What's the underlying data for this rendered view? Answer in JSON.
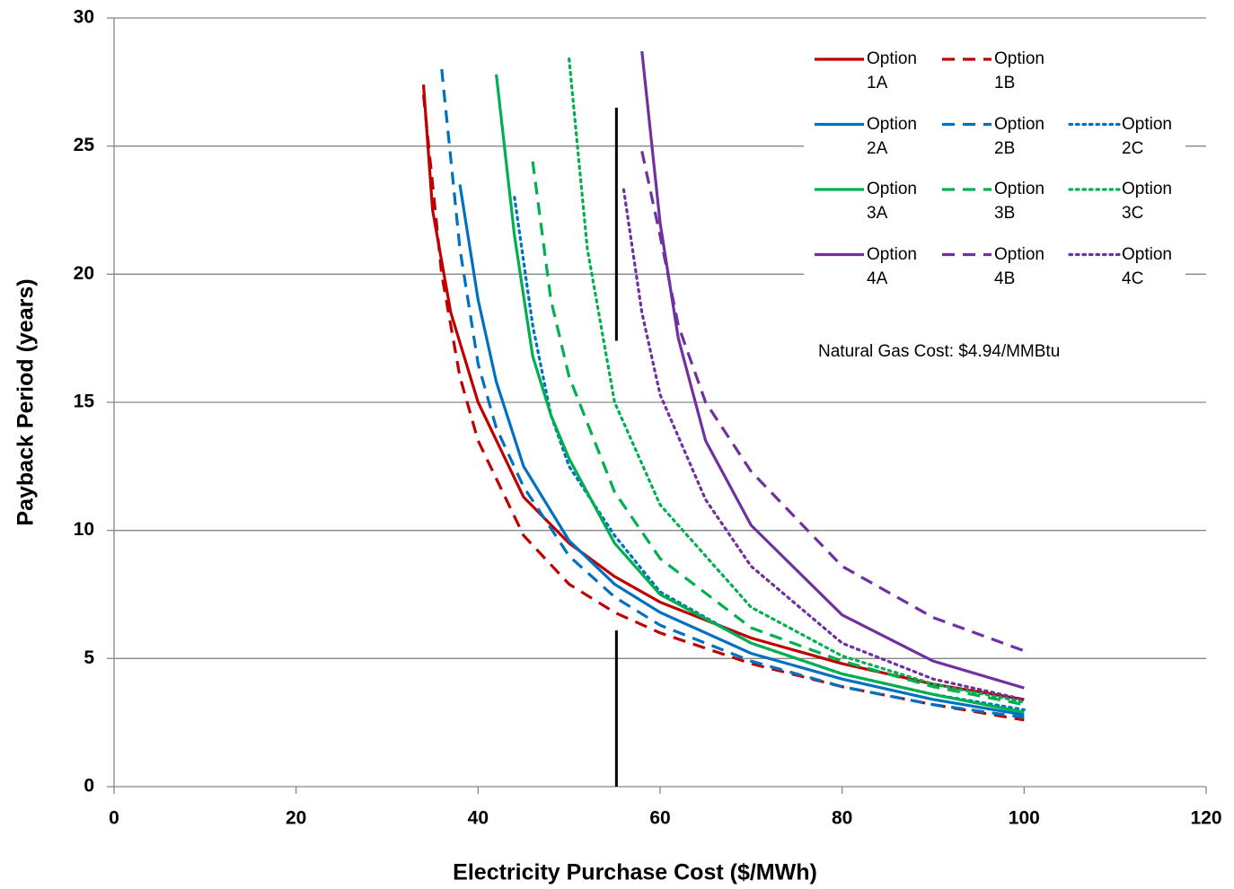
{
  "chart_data": {
    "type": "line",
    "x_label": "Electricity Purchase Cost ($/MWh)",
    "y_label": "Payback Period (years)",
    "annotation": "Natural Gas Cost: $4.94/MMBtu",
    "xlim": [
      0,
      120
    ],
    "xticks": [
      0,
      20,
      40,
      60,
      80,
      100,
      120
    ],
    "ylim": [
      0,
      30
    ],
    "yticks": [
      0,
      5,
      10,
      15,
      20,
      25,
      30
    ],
    "grid": true,
    "legend": "upper right",
    "reference_line": {
      "x": 55.2,
      "y_ranges": [
        [
          0,
          6.1
        ],
        [
          17.4,
          26.5
        ]
      ],
      "color": "#000000"
    },
    "series": [
      {
        "name": "Option 1A",
        "color": "#c00000",
        "dash": "solid",
        "x": [
          34,
          35,
          37,
          40,
          45,
          50,
          55,
          60,
          70,
          80,
          90,
          100
        ],
        "values": [
          27.4,
          22.5,
          18.5,
          15,
          11.3,
          9.5,
          8.2,
          7.2,
          5.8,
          4.8,
          4.0,
          3.4
        ]
      },
      {
        "name": "Option 1B",
        "color": "#c00000",
        "dash": "dashed",
        "x": [
          34,
          35,
          36,
          38,
          40,
          45,
          50,
          55,
          60,
          70,
          80,
          90,
          100
        ],
        "values": [
          27,
          23.5,
          20,
          16,
          13.5,
          9.8,
          7.9,
          6.8,
          6.0,
          4.8,
          3.9,
          3.2,
          2.6
        ]
      },
      {
        "name": "Option 2A",
        "color": "#0070c0",
        "dash": "solid",
        "x": [
          38,
          40,
          42,
          45,
          50,
          55,
          60,
          70,
          80,
          90,
          100
        ],
        "values": [
          23.5,
          19,
          15.8,
          12.5,
          9.6,
          7.9,
          6.8,
          5.2,
          4.2,
          3.4,
          2.8
        ]
      },
      {
        "name": "Option 2B",
        "color": "#0070c0",
        "dash": "dashed",
        "x": [
          36,
          38,
          40,
          42,
          45,
          50,
          55,
          60,
          70,
          80,
          90,
          100
        ],
        "values": [
          28,
          21,
          16.5,
          14,
          11.7,
          9.0,
          7.4,
          6.3,
          4.9,
          3.9,
          3.2,
          2.7
        ]
      },
      {
        "name": "Option 2C",
        "color": "#0070c0",
        "dash": "dotted",
        "x": [
          44,
          46,
          48,
          50,
          55,
          60,
          70,
          80,
          90,
          100
        ],
        "values": [
          23,
          18,
          14.5,
          12.5,
          9.8,
          7.6,
          5.6,
          4.4,
          3.6,
          3.0
        ]
      },
      {
        "name": "Option 3A",
        "color": "#00b050",
        "dash": "solid",
        "x": [
          42,
          44,
          46,
          48,
          50,
          55,
          60,
          70,
          80,
          90,
          100
        ],
        "values": [
          27.8,
          21.5,
          16.8,
          14.5,
          12.8,
          9.5,
          7.5,
          5.6,
          4.4,
          3.6,
          2.9
        ]
      },
      {
        "name": "Option 3B",
        "color": "#00b050",
        "dash": "dashed",
        "x": [
          46,
          48,
          50,
          55,
          60,
          70,
          80,
          90,
          100
        ],
        "values": [
          24.4,
          19,
          16,
          11.5,
          8.9,
          6.2,
          4.9,
          3.9,
          3.2
        ]
      },
      {
        "name": "Option 3C",
        "color": "#00b050",
        "dash": "dotted",
        "x": [
          50,
          52,
          55,
          60,
          70,
          80,
          90,
          100
        ],
        "values": [
          28.4,
          21,
          15,
          11,
          7,
          5.1,
          4.0,
          3.3
        ]
      },
      {
        "name": "Option 4A",
        "color": "#7030a0",
        "dash": "solid",
        "x": [
          58,
          60,
          62,
          65,
          70,
          80,
          90,
          100
        ],
        "values": [
          28.7,
          22,
          17.5,
          13.5,
          10.2,
          6.7,
          4.9,
          3.85
        ]
      },
      {
        "name": "Option 4B",
        "color": "#7030a0",
        "dash": "dashed",
        "x": [
          58,
          60,
          62,
          65,
          70,
          80,
          90,
          100
        ],
        "values": [
          24.8,
          21.5,
          18,
          15,
          12.3,
          8.6,
          6.6,
          5.3
        ]
      },
      {
        "name": "Option 4C",
        "color": "#7030a0",
        "dash": "dotted",
        "x": [
          56,
          58,
          60,
          65,
          70,
          80,
          90,
          100
        ],
        "values": [
          23.3,
          18.5,
          15.3,
          11.2,
          8.6,
          5.6,
          4.2,
          3.4
        ]
      }
    ]
  }
}
